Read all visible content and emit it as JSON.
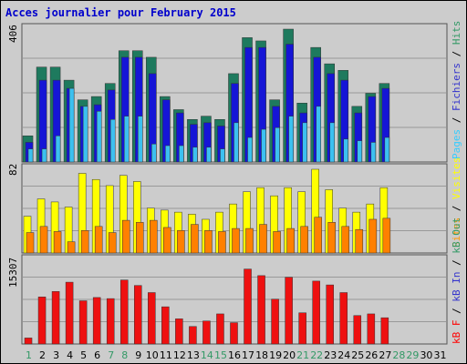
{
  "chart_data": {
    "type": "bar",
    "title": "Acces journalier pour February 2015",
    "categories": [
      "1",
      "2",
      "3",
      "4",
      "5",
      "6",
      "7",
      "8",
      "9",
      "10",
      "11",
      "12",
      "13",
      "14",
      "15",
      "16",
      "17",
      "18",
      "19",
      "20",
      "21",
      "22",
      "23",
      "24",
      "25",
      "26",
      "27",
      "28",
      "29",
      "30",
      "31"
    ],
    "weekend_days": [
      "1",
      "7",
      "8",
      "14",
      "15",
      "21",
      "22",
      "28",
      "29"
    ],
    "weekend_color": "#339966",
    "weekday_color": "#000000",
    "panels": [
      {
        "id": "hits",
        "max_label": "406",
        "ymax": 406,
        "side_labels": [
          {
            "text": "Pages",
            "color": "#33ccff"
          },
          {
            "text": " / ",
            "color": "#000000"
          },
          {
            "text": "Fichiers",
            "color": "#3333cc"
          },
          {
            "text": " / ",
            "color": "#000000"
          },
          {
            "text": "Hits",
            "color": "#339966"
          }
        ],
        "series": [
          {
            "name": "Hits",
            "color": "#1e7a5e",
            "values": [
              80,
              290,
              290,
              250,
              190,
              200,
              240,
              340,
              340,
              320,
              200,
              160,
              130,
              140,
              130,
              270,
              380,
              370,
              190,
              406,
              180,
              350,
              300,
              280,
              170,
              210,
              240
            ]
          },
          {
            "name": "Fichiers",
            "color": "#1515d6",
            "values": [
              60,
              250,
              250,
              225,
              170,
              175,
              220,
              320,
              320,
              270,
              190,
              150,
              115,
              120,
              110,
              240,
              350,
              350,
              170,
              360,
              150,
              320,
              270,
              250,
              150,
              200,
              225
            ]
          },
          {
            "name": "Pages",
            "color": "#3cc0f0",
            "values": [
              40,
              40,
              80,
              225,
              170,
              155,
              130,
              140,
              140,
              55,
              50,
              50,
              45,
              45,
              40,
              120,
              75,
              100,
              105,
              140,
              120,
              170,
              120,
              70,
              65,
              60,
              75
            ]
          }
        ]
      },
      {
        "id": "visits",
        "max_label": "82",
        "ymax": 82,
        "side_labels": [
          {
            "text": "Sites",
            "color": "#ff9900"
          },
          {
            "text": " / ",
            "color": "#000000"
          },
          {
            "text": "Visites",
            "color": "#ffff00"
          }
        ],
        "series": [
          {
            "name": "Visites",
            "color": "#ffff00",
            "values": [
              36,
              53,
              50,
              45,
              78,
              72,
              66,
              76,
              70,
              44,
              42,
              40,
              38,
              33,
              40,
              48,
              60,
              64,
              56,
              64,
              60,
              82,
              62,
              44,
              40,
              48,
              64
            ]
          },
          {
            "name": "Sites",
            "color": "#ff8000",
            "values": [
              20,
              26,
              21,
              11,
              22,
              26,
              20,
              32,
              30,
              32,
              25,
              22,
              28,
              22,
              21,
              24,
              24,
              28,
              21,
              24,
              26,
              35,
              30,
              26,
              23,
              33,
              34
            ]
          }
        ]
      },
      {
        "id": "traffic",
        "max_label": "15307",
        "ymax": 15307,
        "side_labels": [
          {
            "text": "kB F",
            "color": "#ff0000"
          },
          {
            "text": " / ",
            "color": "#000000"
          },
          {
            "text": "kB In",
            "color": "#3333cc"
          },
          {
            "text": " / ",
            "color": "#000000"
          },
          {
            "text": "kB Out",
            "color": "#339966"
          }
        ],
        "series": [
          {
            "name": "kB F",
            "color": "#ee1010",
            "values": [
              1100,
              8600,
              9600,
              11300,
              7900,
              8500,
              8300,
              11700,
              10700,
              9400,
              6800,
              4600,
              3200,
              4200,
              5500,
              3900,
              13700,
              12500,
              8200,
              12200,
              5700,
              11500,
              10800,
              9400,
              5200,
              5500,
              4800
            ]
          }
        ]
      }
    ]
  }
}
